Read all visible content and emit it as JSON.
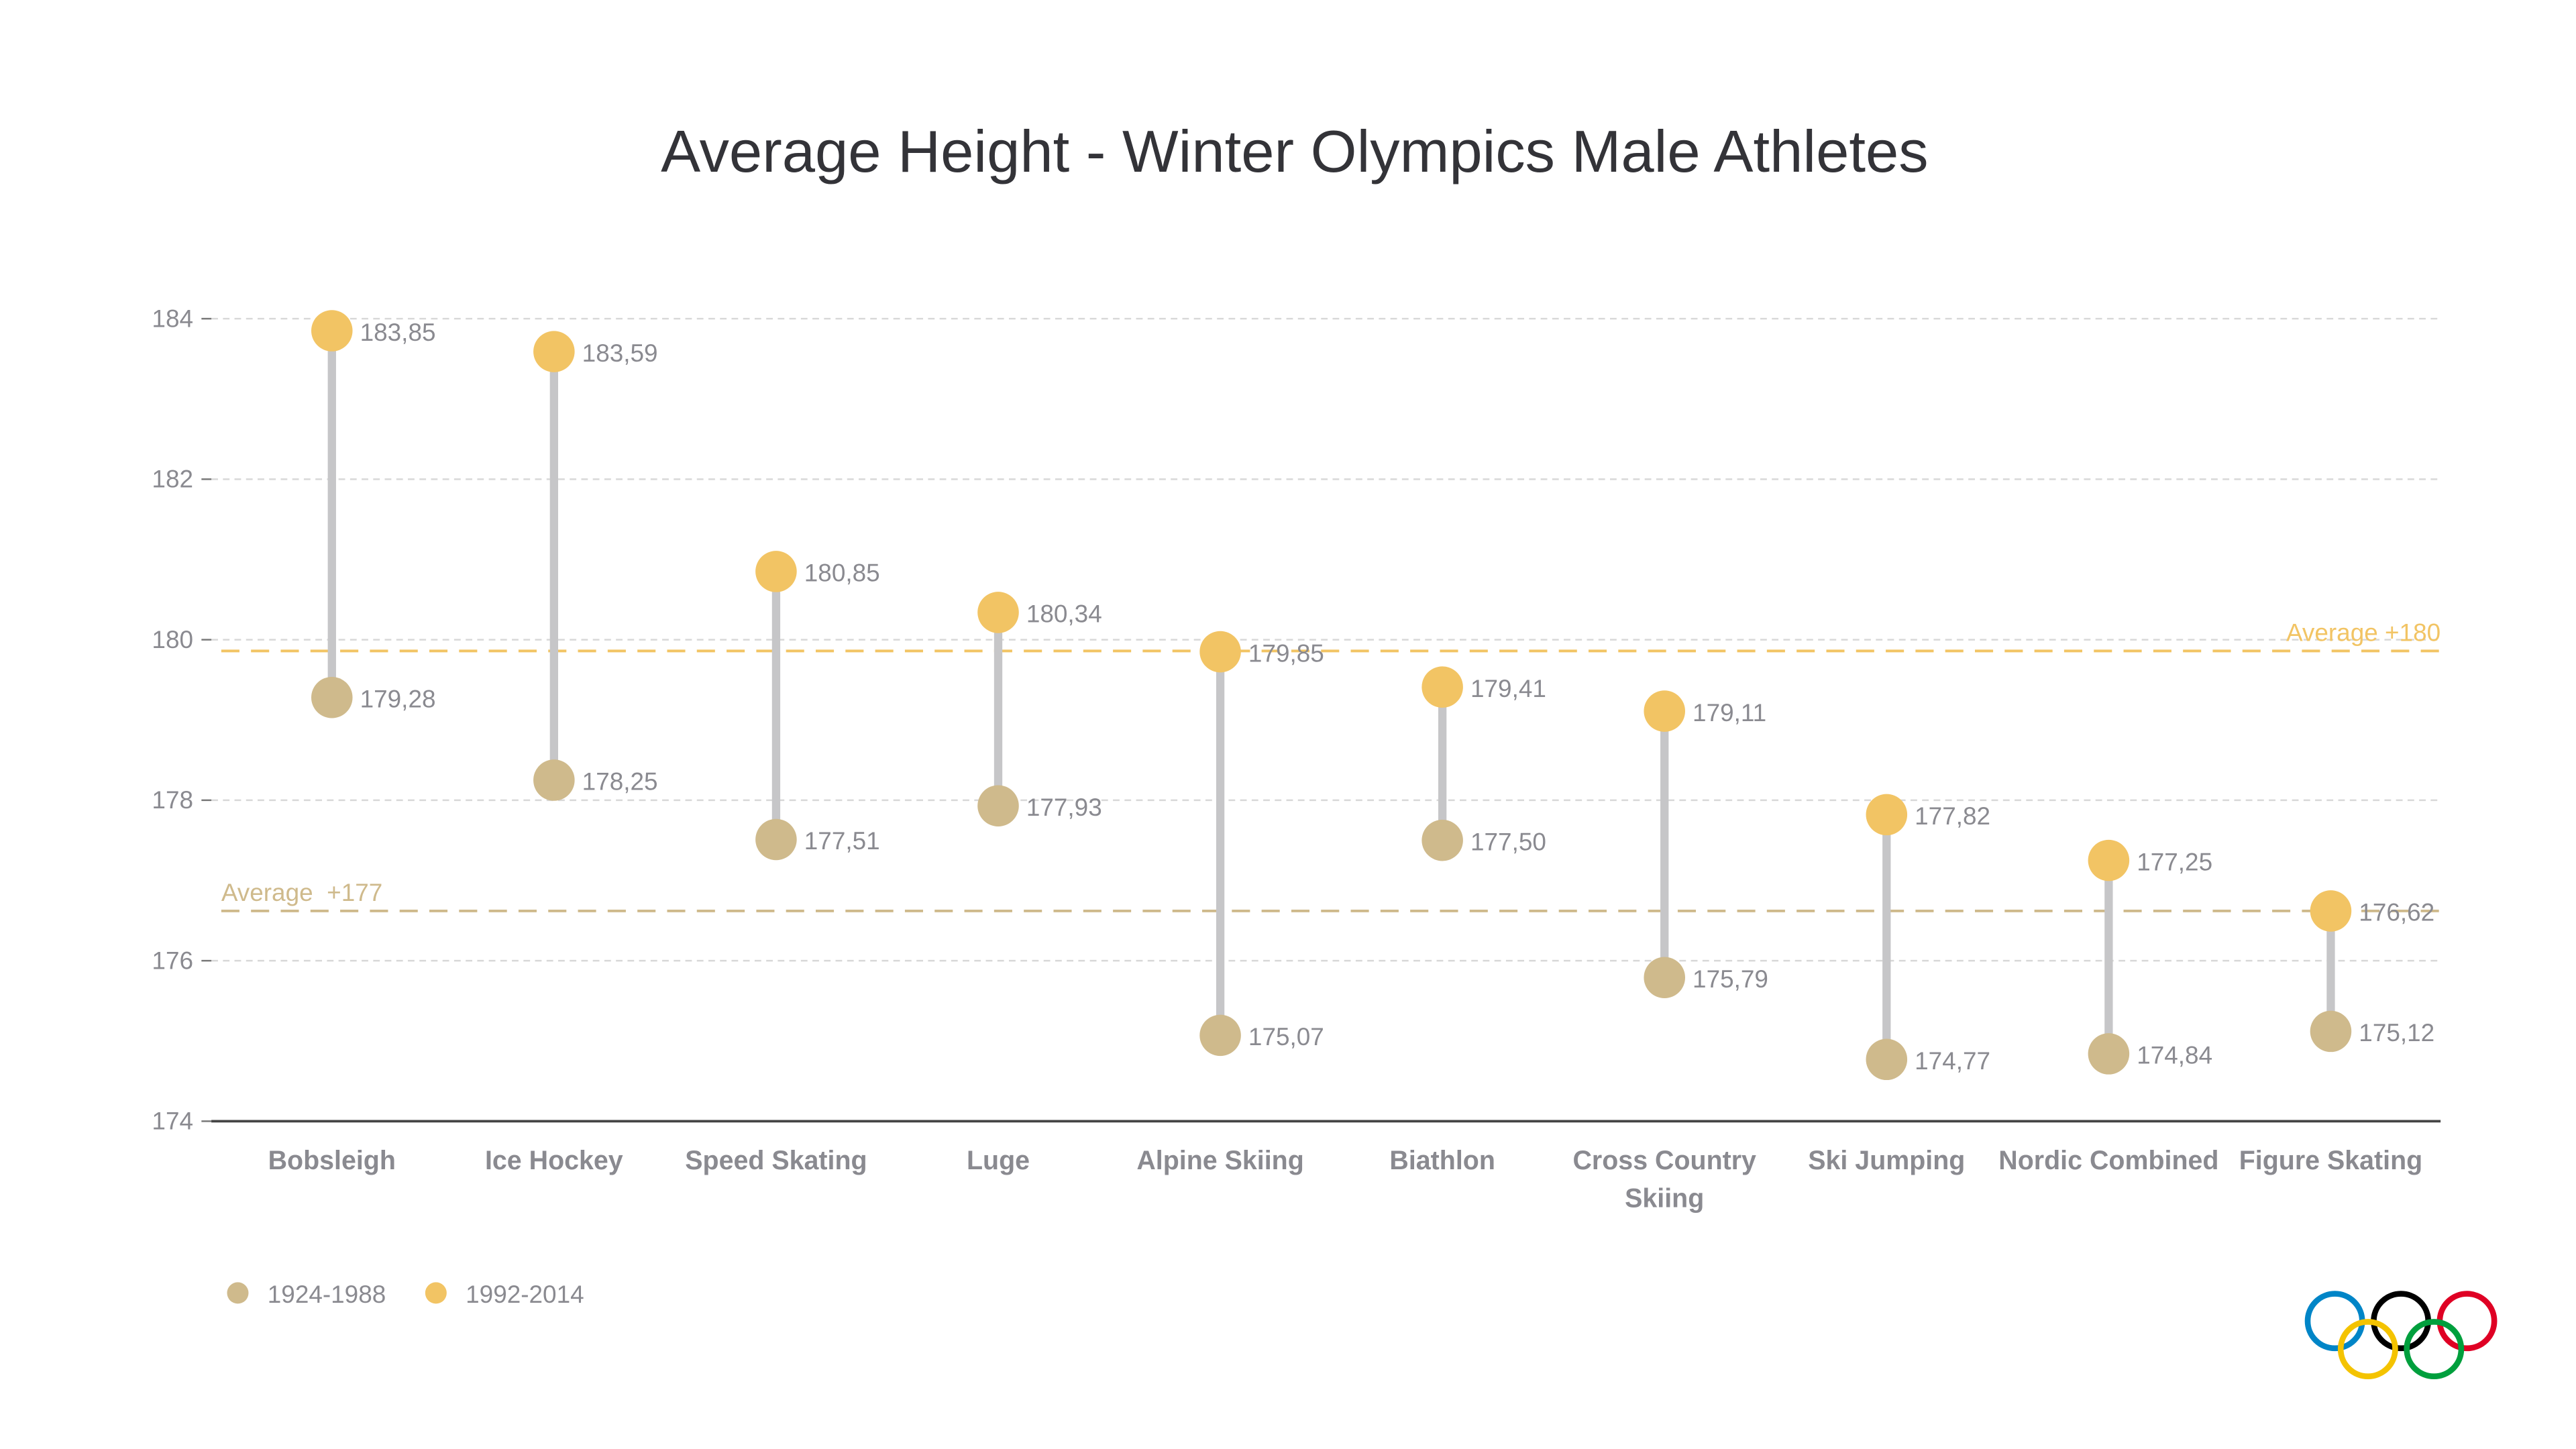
{
  "chart_data": {
    "type": "dumbbell",
    "title": "Average Height - Winter Olympics Male Athletes",
    "categories": [
      "Bobsleigh",
      "Ice Hockey",
      "Speed Skating",
      "Luge",
      "Alpine Skiing",
      "Biathlon",
      "Cross Country Skiing",
      "Ski Jumping",
      "Nordic Combined",
      "Figure Skating"
    ],
    "category_lines": [
      [
        "Bobsleigh"
      ],
      [
        "Ice Hockey"
      ],
      [
        "Speed Skating"
      ],
      [
        "Luge"
      ],
      [
        "Alpine Skiing"
      ],
      [
        "Biathlon"
      ],
      [
        "Cross Country",
        "Skiing"
      ],
      [
        "Ski Jumping"
      ],
      [
        "Nordic Combined"
      ],
      [
        "Figure Skating"
      ]
    ],
    "series": [
      {
        "name": "1924-1988",
        "color": "#CFBA8C",
        "values": [
          179.28,
          178.25,
          177.51,
          177.93,
          175.07,
          177.5,
          175.79,
          174.77,
          174.84,
          175.12
        ],
        "labels": [
          "179,28",
          "178,25",
          "177,51",
          "177,93",
          "175,07",
          "177,50",
          "175,79",
          "174,77",
          "174,84",
          "175,12"
        ]
      },
      {
        "name": "1992-2014",
        "color": "#F2C464",
        "values": [
          183.85,
          183.59,
          180.85,
          180.34,
          179.85,
          179.41,
          179.11,
          177.82,
          177.25,
          176.62
        ],
        "labels": [
          "183,85",
          "183,59",
          "180,85",
          "180,34",
          "179,85",
          "179,41",
          "179,11",
          "177,82",
          "177,25",
          "176,62"
        ]
      }
    ],
    "ylim": [
      174,
      184
    ],
    "yticks": [
      "174",
      "176",
      "178",
      "180",
      "182",
      "184"
    ],
    "grid": true,
    "reference_lines": [
      {
        "label": "Average +180",
        "value": 179.86,
        "color": "#F2C464",
        "placement": "right"
      },
      {
        "label": "Average  +177",
        "value": 176.62,
        "color": "#CFBA8C",
        "placement": "left"
      }
    ],
    "legend_placement": "bottom-left",
    "stem_color": "#C6C6C8"
  },
  "logo": "olympic-rings"
}
